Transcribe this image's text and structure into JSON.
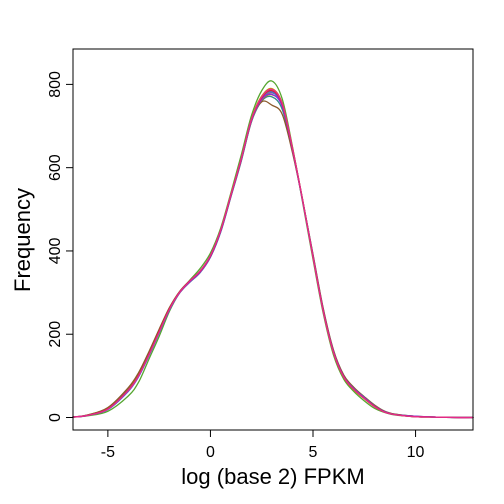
{
  "chart_data": {
    "type": "line",
    "title": "",
    "xlabel": "log (base 2) FPKM",
    "ylabel": "Frequency",
    "xlim": [
      -6.7,
      12.8
    ],
    "ylim": [
      -30,
      885
    ],
    "xticks": [
      -5,
      0,
      5,
      10
    ],
    "yticks": [
      0,
      200,
      400,
      600,
      800
    ],
    "xtick_labels": [
      "-5",
      "0",
      "5",
      "10"
    ],
    "ytick_labels": [
      "0",
      "200",
      "400",
      "600",
      "800"
    ],
    "grid": false,
    "legend": "none",
    "x": [
      -6.7,
      -6,
      -5,
      -4,
      -3.5,
      -3,
      -2.5,
      -2,
      -1.5,
      -1,
      -0.5,
      0,
      0.5,
      1,
      1.5,
      2,
      2.5,
      3,
      3.5,
      4,
      4.5,
      5,
      5.5,
      6,
      6.5,
      7,
      7.5,
      8,
      8.5,
      9,
      10,
      11,
      12,
      12.8
    ],
    "series": [
      {
        "color": "#2e8b8b",
        "values": [
          1,
          5,
          20,
          65,
          100,
          150,
          205,
          260,
          300,
          325,
          348,
          385,
          445,
          530,
          615,
          710,
          760,
          770,
          740,
          640,
          520,
          390,
          260,
          160,
          100,
          70,
          48,
          28,
          14,
          8,
          3,
          1,
          0,
          0
        ]
      },
      {
        "color": "#55a630",
        "values": [
          1,
          4,
          15,
          52,
          85,
          140,
          195,
          255,
          300,
          330,
          358,
          395,
          455,
          540,
          630,
          725,
          785,
          808,
          765,
          650,
          515,
          380,
          250,
          150,
          92,
          62,
          40,
          22,
          12,
          6,
          2,
          1,
          0,
          0
        ]
      },
      {
        "color": "#c5a000",
        "values": [
          1,
          6,
          23,
          70,
          105,
          155,
          210,
          262,
          302,
          328,
          352,
          388,
          450,
          536,
          622,
          718,
          772,
          790,
          755,
          648,
          520,
          385,
          255,
          155,
          96,
          66,
          45,
          26,
          13,
          7,
          2,
          1,
          0,
          0
        ]
      },
      {
        "color": "#b8860b",
        "values": [
          1,
          5,
          22,
          68,
          102,
          152,
          208,
          260,
          300,
          327,
          350,
          387,
          448,
          532,
          618,
          712,
          762,
          775,
          748,
          645,
          522,
          388,
          258,
          158,
          98,
          68,
          46,
          27,
          14,
          7,
          3,
          1,
          0,
          0
        ]
      },
      {
        "color": "#8b5a2b",
        "values": [
          1,
          6,
          24,
          72,
          108,
          158,
          212,
          264,
          303,
          329,
          351,
          388,
          449,
          533,
          619,
          713,
          758,
          750,
          728,
          636,
          520,
          392,
          262,
          162,
          102,
          72,
          50,
          30,
          15,
          8,
          3,
          1,
          0,
          0
        ]
      },
      {
        "color": "#7a7a7a",
        "values": [
          1,
          5,
          21,
          67,
          101,
          150,
          206,
          259,
          299,
          326,
          349,
          386,
          447,
          532,
          617,
          711,
          764,
          780,
          752,
          646,
          521,
          387,
          257,
          157,
          97,
          67,
          46,
          27,
          13,
          7,
          2,
          1,
          0,
          0
        ]
      },
      {
        "color": "#4169e1",
        "values": [
          1,
          5,
          19,
          63,
          98,
          148,
          203,
          258,
          300,
          327,
          350,
          387,
          447,
          533,
          620,
          716,
          768,
          782,
          748,
          643,
          518,
          386,
          256,
          157,
          98,
          69,
          48,
          28,
          14,
          7,
          3,
          1,
          0,
          0
        ]
      },
      {
        "color": "#8a2be2",
        "values": [
          1,
          5,
          20,
          66,
          100,
          151,
          206,
          260,
          300,
          326,
          349,
          386,
          447,
          532,
          618,
          713,
          764,
          776,
          747,
          644,
          520,
          388,
          257,
          158,
          98,
          68,
          47,
          27,
          13,
          7,
          3,
          1,
          0,
          0
        ]
      },
      {
        "color": "#d62728",
        "values": [
          1,
          5,
          21,
          66,
          101,
          151,
          207,
          261,
          301,
          328,
          351,
          388,
          449,
          534,
          620,
          715,
          768,
          785,
          752,
          645,
          520,
          386,
          256,
          156,
          97,
          67,
          46,
          27,
          13,
          7,
          2,
          1,
          0,
          0
        ]
      },
      {
        "color": "#e7298a",
        "values": [
          1,
          5,
          20,
          65,
          100,
          150,
          205,
          260,
          301,
          328,
          352,
          389,
          450,
          535,
          621,
          716,
          770,
          788,
          754,
          646,
          520,
          386,
          255,
          156,
          97,
          67,
          46,
          26,
          13,
          7,
          2,
          1,
          0,
          0
        ]
      }
    ]
  }
}
